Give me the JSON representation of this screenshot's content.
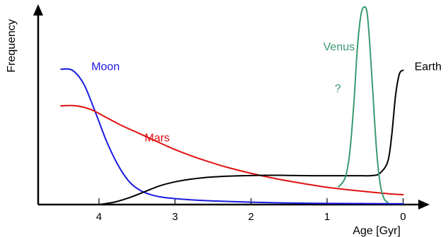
{
  "chart_data": {
    "type": "line",
    "title": "",
    "xlabel": "Age [Gyr]",
    "ylabel": "Frequency",
    "x_reversed": true,
    "xlim": [
      4.8,
      -0.2
    ],
    "ylim": [
      0,
      1
    ],
    "x_ticks": [
      4,
      3,
      2,
      1,
      0
    ],
    "grid": false,
    "legend": "none",
    "annotations": [
      {
        "text": "?",
        "x": 0.9,
        "y": 0.57,
        "color": "#3a9a70"
      }
    ],
    "series": [
      {
        "name": "Moon",
        "color": "#1a1adf",
        "label_at": [
          4.1,
          0.68
        ],
        "x": [
          4.5,
          4.35,
          4.2,
          4.05,
          3.9,
          3.75,
          3.6,
          3.45,
          3.3,
          3.15,
          3.0,
          2.7,
          2.4,
          2.0,
          1.5,
          1.0,
          0.5,
          0.0
        ],
        "y": [
          0.685,
          0.68,
          0.61,
          0.47,
          0.32,
          0.2,
          0.115,
          0.07,
          0.048,
          0.036,
          0.03,
          0.022,
          0.017,
          0.012,
          0.008,
          0.006,
          0.005,
          0.004
        ]
      },
      {
        "name": "Mars",
        "color": "#e01010",
        "label_at": [
          3.4,
          0.32
        ],
        "x": [
          4.5,
          4.3,
          4.1,
          3.9,
          3.7,
          3.5,
          3.3,
          3.1,
          2.9,
          2.7,
          2.5,
          2.3,
          2.0,
          1.7,
          1.4,
          1.1,
          0.8,
          0.5,
          0.2,
          0.0
        ],
        "y": [
          0.5,
          0.5,
          0.48,
          0.44,
          0.4,
          0.365,
          0.33,
          0.295,
          0.263,
          0.235,
          0.21,
          0.187,
          0.158,
          0.133,
          0.112,
          0.093,
          0.078,
          0.066,
          0.055,
          0.05
        ]
      },
      {
        "name": "Earth",
        "color": "#000000",
        "label_at": [
          -0.15,
          0.68
        ],
        "x": [
          4.0,
          3.8,
          3.6,
          3.4,
          3.2,
          3.0,
          2.8,
          2.6,
          2.4,
          2.2,
          2.0,
          1.8,
          1.6,
          1.4,
          1.2,
          1.0,
          0.8,
          0.6,
          0.4,
          0.3,
          0.2,
          0.15,
          0.1,
          0.05,
          0.0
        ],
        "y": [
          0.0,
          0.012,
          0.035,
          0.065,
          0.095,
          0.115,
          0.128,
          0.137,
          0.142,
          0.145,
          0.147,
          0.148,
          0.148,
          0.147,
          0.146,
          0.146,
          0.146,
          0.146,
          0.147,
          0.16,
          0.22,
          0.35,
          0.55,
          0.66,
          0.68
        ]
      },
      {
        "name": "Venus",
        "color": "#3a9a70",
        "label_at": [
          1.05,
          0.78
        ],
        "x": [
          0.85,
          0.8,
          0.75,
          0.7,
          0.65,
          0.6,
          0.55,
          0.5,
          0.47,
          0.44,
          0.4,
          0.35,
          0.3,
          0.25,
          0.2
        ],
        "y": [
          0.09,
          0.11,
          0.15,
          0.27,
          0.5,
          0.8,
          0.97,
          1.0,
          0.96,
          0.82,
          0.58,
          0.28,
          0.1,
          0.03,
          0.01
        ]
      }
    ]
  }
}
